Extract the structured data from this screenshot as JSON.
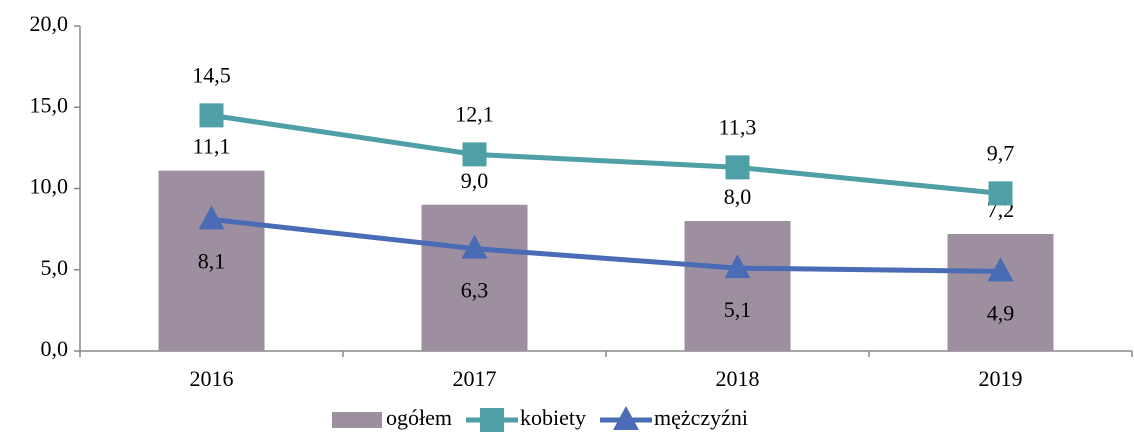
{
  "chart_data": {
    "type": "bar",
    "categories": [
      "2016",
      "2017",
      "2018",
      "2019"
    ],
    "series": [
      {
        "name": "ogółem",
        "type": "bar",
        "color": "#9d8f9f",
        "values": [
          11.1,
          9.0,
          8.0,
          7.2
        ],
        "value_labels": [
          "11,1",
          "9,0",
          "8,0",
          "7,2"
        ]
      },
      {
        "name": "kobiety",
        "type": "line",
        "marker": "square",
        "color": "#4e9fa6",
        "values": [
          14.5,
          12.1,
          11.3,
          9.7
        ],
        "value_labels": [
          "14,5",
          "12,1",
          "11,3",
          "9,7"
        ]
      },
      {
        "name": "mężczyźni",
        "type": "line",
        "marker": "triangle",
        "color": "#4a6bb5",
        "values": [
          8.1,
          6.3,
          5.1,
          4.9
        ],
        "value_labels": [
          "8,1",
          "6,3",
          "5,1",
          "4,9"
        ]
      }
    ],
    "ylim": [
      0,
      20
    ],
    "yticks": [
      {
        "value": 0,
        "label": "0,0"
      },
      {
        "value": 5,
        "label": "5,0"
      },
      {
        "value": 10,
        "label": "10,0"
      },
      {
        "value": 15,
        "label": "15,0"
      },
      {
        "value": 20,
        "label": "20,0"
      }
    ],
    "grid": false,
    "legend": "bottom"
  }
}
